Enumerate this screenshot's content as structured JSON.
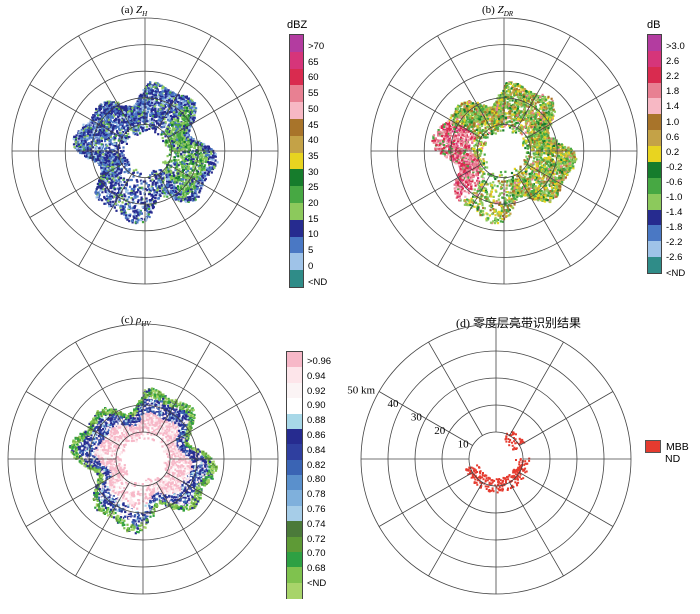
{
  "panels": [
    {
      "id": "a",
      "title_prefix": "(a)",
      "title_var": "Z",
      "title_sub": "H",
      "unit": "dBZ",
      "colorbar": {
        "colors": [
          "#b33ca0",
          "#d6357a",
          "#d92b4f",
          "#e88092",
          "#f7b8c4",
          "#a8742a",
          "#c4a247",
          "#e8d420",
          "#167c2c",
          "#47a843",
          "#8cc95c",
          "#262b8f",
          "#4a78c4",
          "#9fc3e8",
          "#2f8c88"
        ],
        "labels": [
          ">70",
          "65",
          "60",
          "55",
          "50",
          "45",
          "40",
          "35",
          "30",
          "25",
          "20",
          "15",
          "10",
          "5",
          "0",
          "<ND"
        ]
      },
      "chart_data": {
        "type": "ppi",
        "variable": "Z_H",
        "unit": "dBZ",
        "range_rings_km": [
          10,
          20,
          30,
          40,
          50
        ],
        "azimuth_spokes_deg": [
          0,
          30,
          60,
          90,
          120,
          150,
          180,
          210,
          240,
          270,
          300,
          330
        ],
        "echo_max_range_km": 30
      }
    },
    {
      "id": "b",
      "title_prefix": "(b)",
      "title_var": "Z",
      "title_sub": "DR",
      "unit": "dB",
      "colorbar": {
        "colors": [
          "#b33ca0",
          "#d6357a",
          "#d92b4f",
          "#e88092",
          "#f7b8c4",
          "#a8742a",
          "#c4a247",
          "#e8d420",
          "#167c2c",
          "#47a843",
          "#8cc95c",
          "#262b8f",
          "#4a78c4",
          "#9fc3e8",
          "#2f8c88"
        ],
        "labels": [
          ">3.0",
          "2.6",
          "2.2",
          "1.8",
          "1.4",
          "1.0",
          "0.6",
          "0.2",
          "-0.2",
          "-0.6",
          "-1.0",
          "-1.4",
          "-1.8",
          "-2.2",
          "-2.6",
          "<ND"
        ]
      },
      "chart_data": {
        "type": "ppi",
        "variable": "Z_DR",
        "unit": "dB",
        "range_rings_km": [
          10,
          20,
          30,
          40,
          50
        ],
        "azimuth_spokes_deg": [
          0,
          30,
          60,
          90,
          120,
          150,
          180,
          210,
          240,
          270,
          300,
          330
        ],
        "echo_max_range_km": 30
      }
    },
    {
      "id": "c",
      "title_prefix": "(c)",
      "title_var": "ρ",
      "title_sub": "HV",
      "unit": "",
      "colorbar": {
        "colors": [
          "#f7b8c8",
          "#fde5ea",
          "#fbf4f5",
          "#ffffff",
          "#a8d8e8",
          "#262b8f",
          "#2f3f9f",
          "#3a64b4",
          "#5a90cc",
          "#7fb0dc",
          "#a6cde8",
          "#4b7a3a",
          "#5e9a36",
          "#2ea043",
          "#7fc24e",
          "#a8d46a"
        ],
        "labels": [
          ">0.96",
          "0.94",
          "0.92",
          "0.90",
          "0.88",
          "0.86",
          "0.84",
          "0.82",
          "0.80",
          "0.78",
          "0.76",
          "0.74",
          "0.72",
          "0.70",
          "0.68",
          "<ND"
        ]
      },
      "chart_data": {
        "type": "ppi",
        "variable": "rho_HV",
        "range_rings_km": [
          10,
          20,
          30,
          40,
          50
        ],
        "azimuth_spokes_deg": [
          0,
          30,
          60,
          90,
          120,
          150,
          180,
          210,
          240,
          270,
          300,
          330
        ],
        "echo_max_range_km": 30
      }
    },
    {
      "id": "d",
      "title_prefix": "(d)",
      "title_text": "零度层亮带识别结果",
      "legend": {
        "mbb_label": "MBB",
        "nd_label": "ND",
        "mbb_color": "#e53b2f"
      },
      "ring_labels": [
        "10",
        "20",
        "30",
        "40",
        "50 km"
      ],
      "chart_data": {
        "type": "ppi",
        "variable": "melting bright band identification",
        "range_rings_km": [
          10,
          20,
          30,
          40,
          50
        ],
        "azimuth_spokes_deg": [
          0,
          30,
          60,
          90,
          120,
          150,
          180,
          210,
          240,
          270,
          300,
          330
        ],
        "mbb_range_km": [
          7,
          12
        ]
      }
    }
  ]
}
